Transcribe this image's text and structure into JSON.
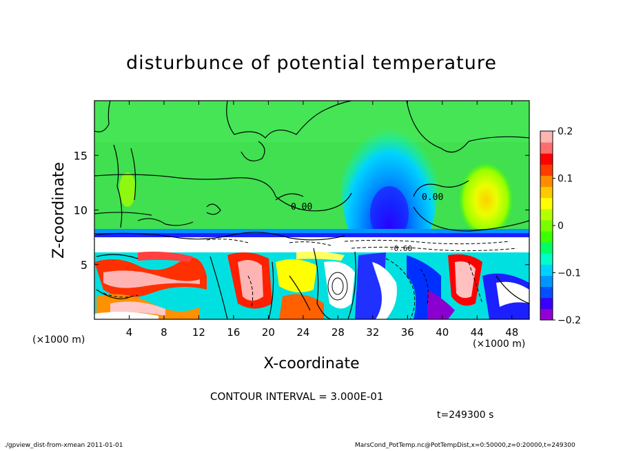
{
  "chart_data": {
    "type": "heatmap",
    "title": "disturbunce of potential temperature",
    "xlabel": "X-coordinate",
    "ylabel": "Z-coordinate",
    "x_unit_left": "(×1000 m)",
    "x_unit_right": "(×1000 m)",
    "xlim": [
      0,
      50
    ],
    "ylim": [
      0,
      20
    ],
    "x_ticks": [
      "4",
      "8",
      "12",
      "16",
      "20",
      "24",
      "28",
      "32",
      "36",
      "40",
      "44",
      "48"
    ],
    "y_ticks": [
      "5",
      "10",
      "15"
    ],
    "colorbar": {
      "ticks": [
        "0.2",
        "0.1",
        "0",
        "−0.1",
        "−0.2"
      ],
      "range": [
        -0.2,
        0.2
      ],
      "colors": [
        "#9400d3",
        "#3a00ff",
        "#0050ff",
        "#0096ff",
        "#00d2ff",
        "#00ffc8",
        "#00ff64",
        "#3cff00",
        "#78ff00",
        "#b4ff00",
        "#ffff00",
        "#ffc800",
        "#ff8c00",
        "#ff3c00",
        "#ff0000",
        "#ff6e6e",
        "#ffb4b4"
      ]
    },
    "contour_labels": [
      "0.00",
      "0.00",
      "-0.60"
    ],
    "contour_interval": "CONTOUR INTERVAL = 3.000E-01",
    "time": "t=249300 s",
    "regions": {
      "upper_background": 0.0,
      "plume_center_x": 33.5,
      "plume_min_value": -0.15,
      "warm_patch_center_x": 44.5,
      "warm_patch_value": 0.08,
      "boundary_layer_top_z": 7.5
    }
  },
  "footer": {
    "left": "./gpview_dist-from-xmean   2011-01-01",
    "right": "MarsCond_PotTemp.nc@PotTempDist,x=0:50000,z=0:20000,t=249300"
  }
}
